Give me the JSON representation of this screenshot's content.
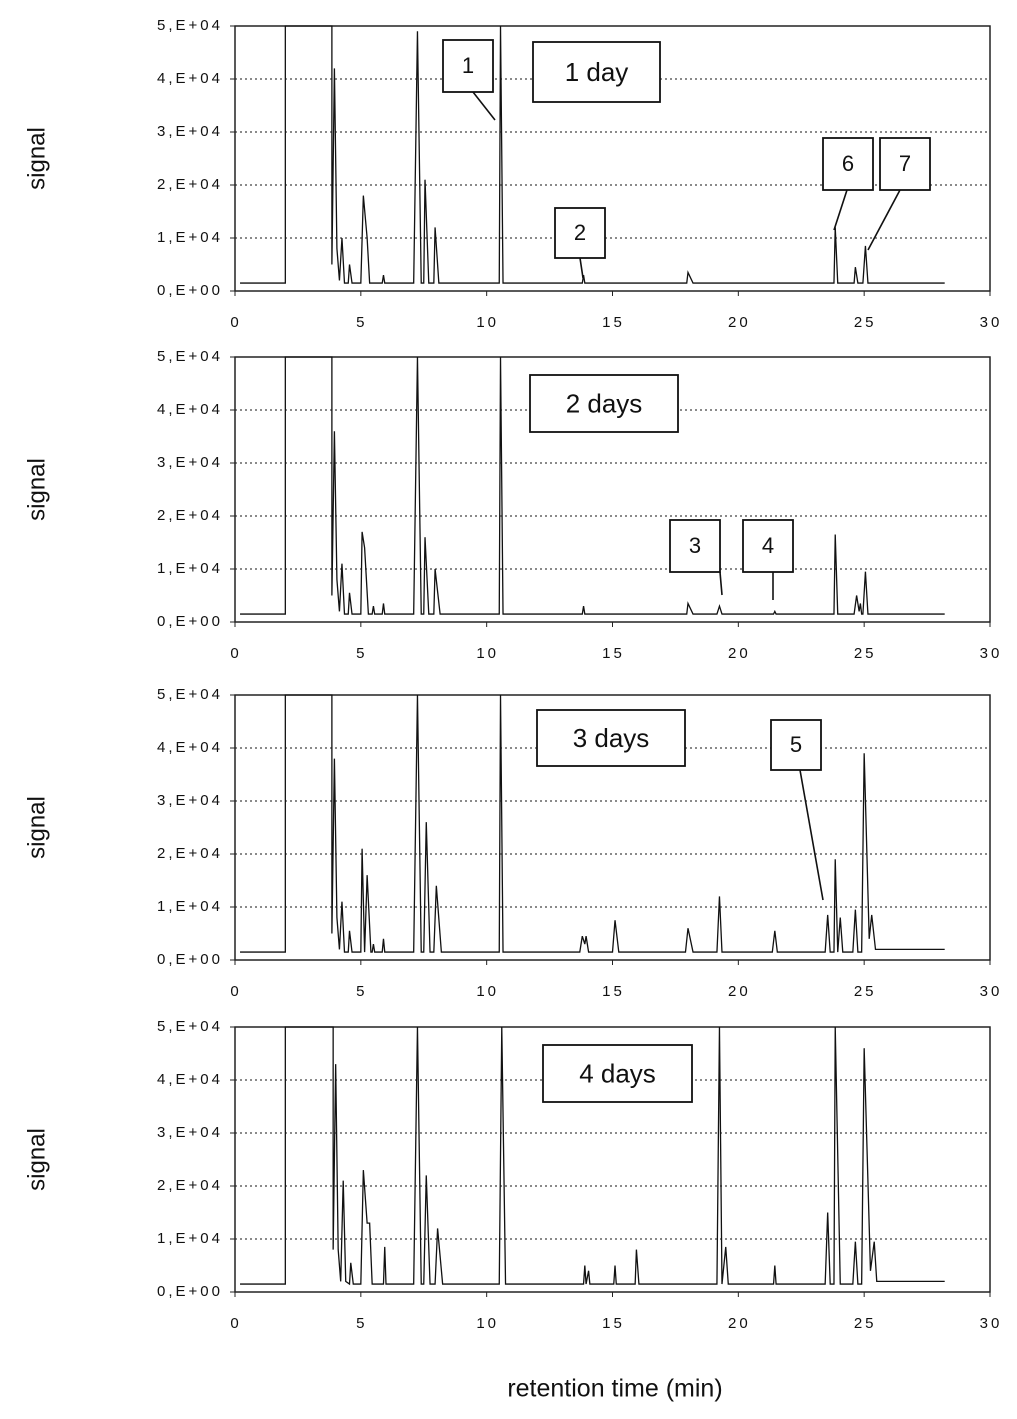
{
  "chart_data": [
    {
      "type": "line",
      "title": "1 day",
      "ylabel": "signal",
      "x": [
        0.2,
        2,
        2,
        3.85,
        3.85,
        3.95,
        4.05,
        4.15,
        4.25,
        4.35,
        4.5,
        4.55,
        4.65,
        5,
        5.1,
        5.25,
        5.35,
        5.85,
        5.9,
        5.95,
        7.1,
        7.25,
        7.4,
        7.5,
        7.55,
        7.7,
        7.9,
        7.95,
        8.1,
        10.5,
        10.55,
        10.65,
        13.8,
        13.85,
        13.9,
        17.95,
        18,
        18.2,
        23.8,
        23.85,
        23.95,
        24.6,
        24.65,
        24.75,
        24.95,
        25.05,
        25.15,
        28.2
      ],
      "series": [
        {
          "color": "#111111",
          "values": [
            1500,
            1500,
            50000,
            50000,
            5000,
            42000,
            8000,
            2000,
            10000,
            1500,
            1500,
            5000,
            1500,
            1500,
            18000,
            10000,
            1500,
            1500,
            3000,
            1500,
            1500,
            49000,
            1500,
            1500,
            21000,
            1500,
            1500,
            12000,
            1500,
            1500,
            50000,
            1500,
            1500,
            3000,
            1500,
            1500,
            3500,
            1500,
            1500,
            12000,
            1500,
            1500,
            4500,
            1500,
            1500,
            8500,
            1500,
            1500
          ]
        }
      ],
      "xlim": [
        0,
        30
      ],
      "xticks": [
        0,
        5,
        10,
        15,
        20,
        25,
        30
      ],
      "ylim": [
        0,
        50000
      ],
      "yticks": [
        {
          "value": 0,
          "label": "0,E+00"
        },
        {
          "value": 10000,
          "label": "1,E+04"
        },
        {
          "value": 20000,
          "label": "2,E+04"
        },
        {
          "value": 30000,
          "label": "3,E+04"
        },
        {
          "value": 40000,
          "label": "4,E+04"
        },
        {
          "value": 50000,
          "label": "5,E+04"
        }
      ],
      "grid": true,
      "annotations": [
        "1",
        "2",
        "6",
        "7"
      ]
    },
    {
      "type": "line",
      "title": "2 days",
      "ylabel": "signal",
      "x": [
        0.2,
        2,
        2,
        3.85,
        3.85,
        3.95,
        4.05,
        4.15,
        4.25,
        4.35,
        4.5,
        4.55,
        4.65,
        5,
        5.05,
        5.15,
        5.3,
        5.45,
        5.5,
        5.55,
        5.85,
        5.9,
        5.95,
        7.1,
        7.25,
        7.4,
        7.5,
        7.55,
        7.7,
        7.9,
        7.95,
        8.15,
        10.5,
        10.55,
        10.65,
        13.8,
        13.85,
        13.9,
        17.95,
        18,
        18.2,
        19.15,
        19.25,
        19.35,
        21.4,
        21.45,
        21.5,
        23.8,
        23.85,
        23.95,
        24.6,
        24.7,
        24.8,
        24.85,
        24.9,
        24.95,
        25.05,
        25.15,
        28.2
      ],
      "series": [
        {
          "color": "#111111",
          "values": [
            1500,
            1500,
            50000,
            50000,
            5000,
            36000,
            8000,
            2000,
            11000,
            1500,
            1500,
            5500,
            1500,
            1500,
            17000,
            14000,
            1500,
            1500,
            3000,
            1500,
            1500,
            3500,
            1500,
            1500,
            50000,
            1500,
            1500,
            16000,
            1500,
            1500,
            10000,
            1500,
            1500,
            50000,
            1500,
            1500,
            3000,
            1500,
            1500,
            3500,
            1500,
            1500,
            3000,
            1500,
            1500,
            2000,
            1500,
            1500,
            16500,
            1500,
            1500,
            5000,
            2000,
            3500,
            1500,
            1500,
            9500,
            1500,
            1500
          ]
        }
      ],
      "xlim": [
        0,
        30
      ],
      "xticks": [
        0,
        5,
        10,
        15,
        20,
        25,
        30
      ],
      "ylim": [
        0,
        50000
      ],
      "yticks": [
        {
          "value": 0,
          "label": "0,E+00"
        },
        {
          "value": 10000,
          "label": "1,E+04"
        },
        {
          "value": 20000,
          "label": "2,E+04"
        },
        {
          "value": 30000,
          "label": "3,E+04"
        },
        {
          "value": 40000,
          "label": "4,E+04"
        },
        {
          "value": 50000,
          "label": "5,E+04"
        }
      ],
      "grid": true,
      "annotations": [
        "3",
        "4"
      ]
    },
    {
      "type": "line",
      "title": "3 days",
      "ylabel": "signal",
      "x": [
        0.2,
        2,
        2,
        3.85,
        3.85,
        3.95,
        4.05,
        4.15,
        4.25,
        4.35,
        4.5,
        4.55,
        4.65,
        5,
        5.05,
        5.15,
        5.25,
        5.4,
        5.45,
        5.5,
        5.55,
        5.85,
        5.9,
        5.95,
        7.1,
        7.25,
        7.4,
        7.5,
        7.6,
        7.75,
        7.9,
        8.0,
        8.2,
        10.5,
        10.55,
        10.65,
        13.7,
        13.8,
        13.9,
        13.95,
        14.05,
        15.0,
        15.1,
        15.25,
        17.9,
        18.0,
        18.2,
        19.15,
        19.25,
        19.35,
        21.35,
        21.45,
        21.55,
        23.45,
        23.55,
        23.65,
        23.8,
        23.85,
        23.95,
        24.05,
        24.15,
        24.55,
        24.65,
        24.75,
        24.9,
        25.0,
        25.2,
        25.3,
        25.45,
        28.2
      ],
      "series": [
        {
          "color": "#111111",
          "values": [
            1500,
            1500,
            50000,
            50000,
            5000,
            38000,
            8000,
            2000,
            11000,
            1500,
            1500,
            5500,
            1500,
            1500,
            21000,
            1500,
            16000,
            1500,
            1500,
            3000,
            1500,
            1500,
            4000,
            1500,
            1500,
            50000,
            1500,
            1500,
            26000,
            1500,
            1500,
            14000,
            1500,
            1500,
            50000,
            1500,
            1500,
            4500,
            3000,
            4500,
            1500,
            1500,
            7500,
            1500,
            1500,
            6000,
            1500,
            1500,
            12000,
            1500,
            1500,
            5500,
            1500,
            1500,
            8500,
            1500,
            1500,
            19000,
            1500,
            8000,
            1500,
            1500,
            9500,
            1500,
            1500,
            39000,
            4000,
            8500,
            2000,
            2000
          ]
        }
      ],
      "xlim": [
        0,
        30
      ],
      "xticks": [
        0,
        5,
        10,
        15,
        20,
        25,
        30
      ],
      "ylim": [
        0,
        50000
      ],
      "yticks": [
        {
          "value": 0,
          "label": "0,E+00"
        },
        {
          "value": 10000,
          "label": "1,E+04"
        },
        {
          "value": 20000,
          "label": "2,E+04"
        },
        {
          "value": 30000,
          "label": "3,E+04"
        },
        {
          "value": 40000,
          "label": "4,E+04"
        },
        {
          "value": 50000,
          "label": "5,E+04"
        }
      ],
      "grid": true,
      "annotations": [
        "5"
      ]
    },
    {
      "type": "line",
      "title": "4 days",
      "ylabel": "signal",
      "xlabel": "retention time (min)",
      "x": [
        0.2,
        2,
        2,
        3.9,
        3.9,
        4.0,
        4.1,
        4.2,
        4.3,
        4.4,
        4.55,
        4.6,
        4.7,
        5.0,
        5.1,
        5.25,
        5.35,
        5.45,
        5.9,
        5.95,
        6.0,
        7.1,
        7.25,
        7.4,
        7.5,
        7.6,
        7.75,
        7.95,
        8.05,
        8.25,
        10.5,
        10.6,
        10.75,
        13.85,
        13.9,
        13.95,
        14.05,
        14.1,
        15.05,
        15.1,
        15.15,
        15.9,
        15.95,
        16.05,
        19.15,
        19.25,
        19.35,
        19.5,
        19.6,
        21.4,
        21.45,
        21.5,
        23.45,
        23.55,
        23.65,
        23.8,
        23.85,
        24.05,
        24.55,
        24.65,
        24.75,
        24.9,
        25.0,
        25.25,
        25.4,
        25.5,
        28.2
      ],
      "series": [
        {
          "color": "#111111",
          "values": [
            1500,
            1500,
            50000,
            50000,
            8000,
            43000,
            8000,
            2000,
            21000,
            2000,
            1500,
            5500,
            1500,
            1500,
            23000,
            13000,
            13000,
            1500,
            1500,
            8500,
            1500,
            1500,
            50000,
            1500,
            1500,
            22000,
            1500,
            1500,
            12000,
            1500,
            1500,
            50000,
            1500,
            1500,
            5000,
            1500,
            4000,
            1500,
            1500,
            5000,
            1500,
            1500,
            8000,
            1500,
            1500,
            50000,
            1500,
            8500,
            1500,
            1500,
            5000,
            1500,
            1500,
            15000,
            1500,
            1500,
            50000,
            1500,
            1500,
            9500,
            1500,
            1500,
            46000,
            4000,
            9500,
            2000,
            2000
          ]
        }
      ],
      "xlim": [
        0,
        30
      ],
      "xticks": [
        0,
        5,
        10,
        15,
        20,
        25,
        30
      ],
      "ylim": [
        0,
        50000
      ],
      "yticks": [
        {
          "value": 0,
          "label": "0,E+00"
        },
        {
          "value": 10000,
          "label": "1,E+04"
        },
        {
          "value": 20000,
          "label": "2,E+04"
        },
        {
          "value": 30000,
          "label": "3,E+04"
        },
        {
          "value": 40000,
          "label": "4,E+04"
        },
        {
          "value": 50000,
          "label": "5,E+04"
        }
      ],
      "grid": true,
      "annotations": []
    }
  ]
}
